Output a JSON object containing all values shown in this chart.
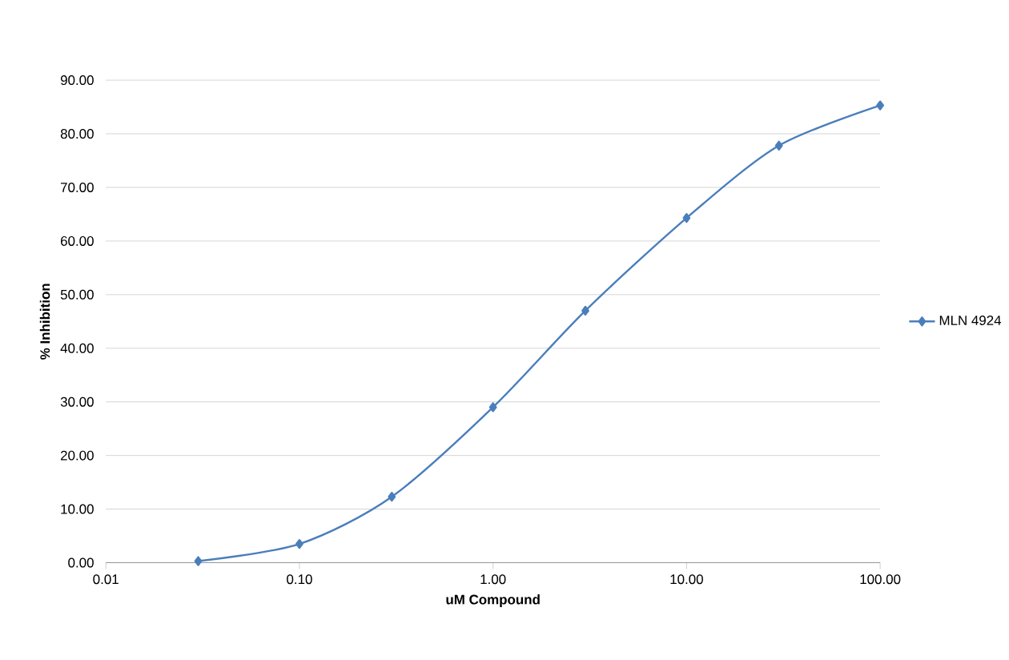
{
  "chart_data": {
    "type": "line",
    "xlabel": "uM Compound",
    "ylabel": "% Inhibition",
    "x": [
      0.03,
      0.1,
      0.3,
      1,
      3,
      10,
      30,
      100
    ],
    "series": [
      {
        "name": "MLN 4924",
        "color": "#4a7ebb",
        "values": [
          0.3,
          3.5,
          12.3,
          29.0,
          47.0,
          64.3,
          77.8,
          85.3
        ]
      }
    ],
    "log": "x",
    "xlim": [
      0.01,
      100
    ],
    "xticks": [
      {
        "value": 0.01,
        "label": "0.01"
      },
      {
        "value": 0.1,
        "label": "0.10"
      },
      {
        "value": 1,
        "label": "1.00"
      },
      {
        "value": 10,
        "label": "10.00"
      },
      {
        "value": 100,
        "label": "100.00"
      }
    ],
    "ylim": [
      0,
      90
    ],
    "yticks": [
      {
        "value": 0,
        "label": "0.00"
      },
      {
        "value": 10,
        "label": "10.00"
      },
      {
        "value": 20,
        "label": "20.00"
      },
      {
        "value": 30,
        "label": "30.00"
      },
      {
        "value": 40,
        "label": "40.00"
      },
      {
        "value": 50,
        "label": "50.00"
      },
      {
        "value": 60,
        "label": "60.00"
      },
      {
        "value": 70,
        "label": "70.00"
      },
      {
        "value": 80,
        "label": "80.00"
      },
      {
        "value": 90,
        "label": "90.00"
      }
    ],
    "grid": "y",
    "legend": "right",
    "marker": "diamond",
    "line_style": "solid"
  }
}
